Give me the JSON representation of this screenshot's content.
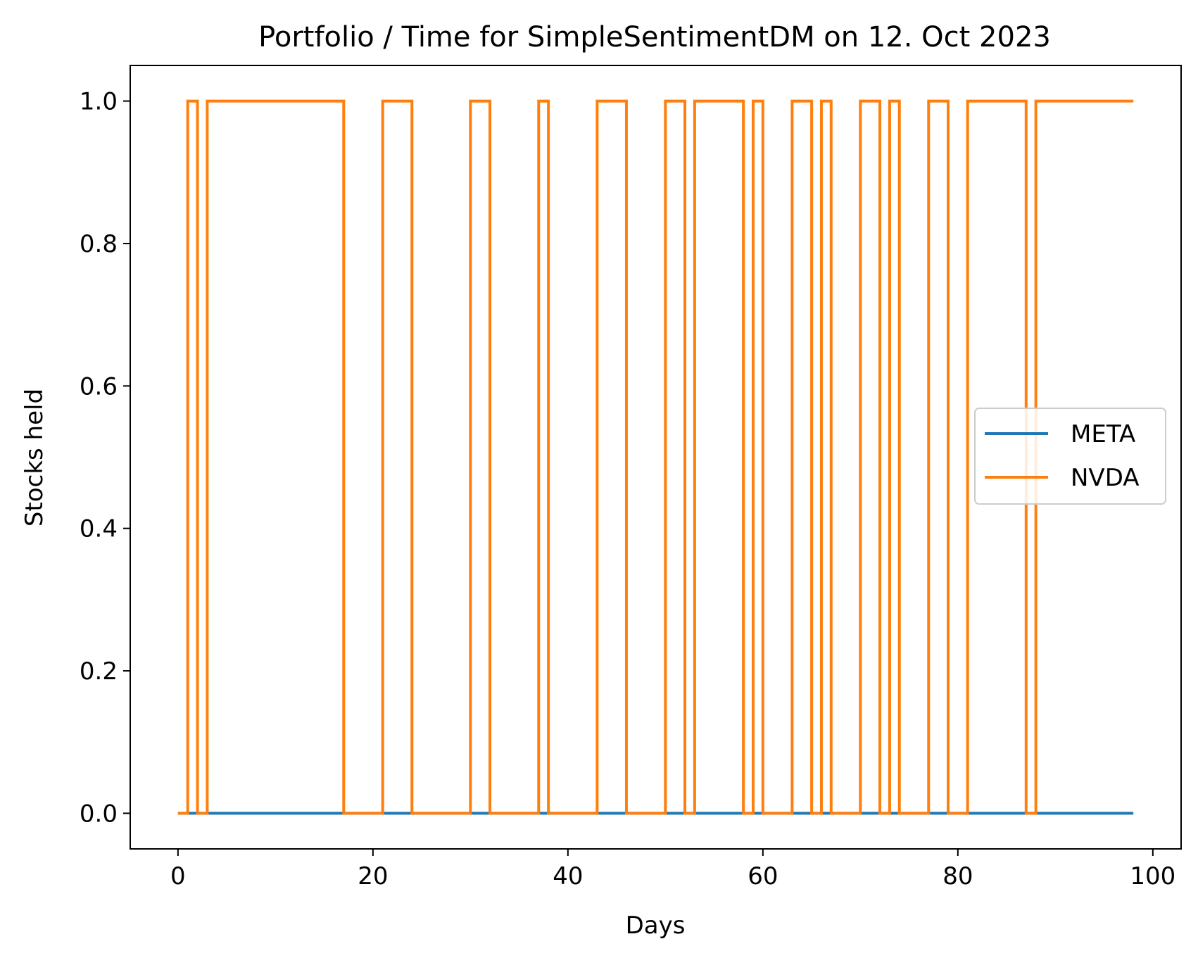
{
  "chart_data": {
    "type": "line",
    "title": "Portfolio / Time for SimpleSentimentDM on 12. Oct 2023",
    "xlabel": "Days",
    "ylabel": "Stocks held",
    "xlim": [
      -4.9,
      102.9
    ],
    "ylim": [
      -0.05,
      1.05
    ],
    "x_ticks": [
      0,
      20,
      40,
      60,
      80,
      100
    ],
    "y_ticks": [
      0.0,
      0.2,
      0.4,
      0.6,
      0.8,
      1.0
    ],
    "x_tick_labels": [
      "0",
      "20",
      "40",
      "60",
      "80",
      "100"
    ],
    "y_tick_labels": [
      "0.0",
      "0.2",
      "0.4",
      "0.6",
      "0.8",
      "1.0"
    ],
    "grid": false,
    "legend_position": "center-right",
    "step": "post",
    "series": [
      {
        "name": "META",
        "color": "#1f77b4",
        "points": [
          [
            0,
            0
          ],
          [
            98,
            0
          ]
        ]
      },
      {
        "name": "NVDA",
        "color": "#ff7f0e",
        "points": [
          [
            0,
            0
          ],
          [
            1,
            1
          ],
          [
            2,
            0
          ],
          [
            3,
            1
          ],
          [
            17,
            0
          ],
          [
            21,
            1
          ],
          [
            24,
            0
          ],
          [
            30,
            1
          ],
          [
            32,
            0
          ],
          [
            37,
            1
          ],
          [
            38,
            0
          ],
          [
            43,
            1
          ],
          [
            46,
            0
          ],
          [
            50,
            1
          ],
          [
            52,
            0
          ],
          [
            53,
            1
          ],
          [
            58,
            0
          ],
          [
            59,
            1
          ],
          [
            60,
            0
          ],
          [
            63,
            1
          ],
          [
            65,
            0
          ],
          [
            66,
            1
          ],
          [
            67,
            0
          ],
          [
            70,
            1
          ],
          [
            72,
            0
          ],
          [
            73,
            1
          ],
          [
            74,
            0
          ],
          [
            77,
            1
          ],
          [
            79,
            0
          ],
          [
            81,
            1
          ],
          [
            87,
            0
          ],
          [
            88,
            1
          ],
          [
            98,
            1
          ]
        ]
      }
    ]
  }
}
